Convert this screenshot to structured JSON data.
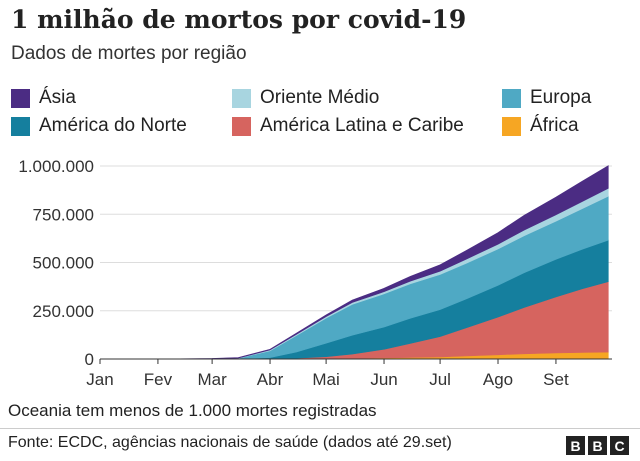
{
  "header": {
    "title": "1 milhão de mortos por covid-19",
    "subtitle": "Dados de mortes por região"
  },
  "legend": [
    {
      "label": "Ásia",
      "color": "#4b2c83"
    },
    {
      "label": "Oriente Médio",
      "color": "#a8d5e0"
    },
    {
      "label": "Europa",
      "color": "#4fa9c4"
    },
    {
      "label": "América do Norte",
      "color": "#157f9e"
    },
    {
      "label": "América Latina e Caribe",
      "color": "#d6645f"
    },
    {
      "label": "África",
      "color": "#f6a623"
    }
  ],
  "chart_data": {
    "type": "area",
    "stacked": true,
    "title": "1 milhão de mortos por covid-19",
    "subtitle": "Dados de mortes por região",
    "x_tick_labels": [
      "Jan",
      "Fev",
      "Mar",
      "Abr",
      "Mai",
      "Jun",
      "Jul",
      "Ago",
      "Set"
    ],
    "y_tick_labels": [
      "0",
      "250.000",
      "500.000",
      "750.000",
      "1.000.000"
    ],
    "y_ticks": [
      0,
      250000,
      500000,
      750000,
      1000000
    ],
    "ylim": [
      0,
      1000000
    ],
    "grid": "horizontal",
    "x": [
      "2020-01-01",
      "2020-02-01",
      "2020-03-01",
      "2020-03-15",
      "2020-04-01",
      "2020-04-15",
      "2020-05-01",
      "2020-05-15",
      "2020-06-01",
      "2020-06-15",
      "2020-07-01",
      "2020-07-15",
      "2020-08-01",
      "2020-08-15",
      "2020-09-01",
      "2020-09-15",
      "2020-09-29"
    ],
    "series": [
      {
        "name": "África",
        "color": "#f6a623",
        "values": [
          0,
          0,
          0,
          0,
          500,
          1000,
          2000,
          3500,
          5500,
          8000,
          11000,
          16000,
          22000,
          27000,
          31000,
          33500,
          35500
        ]
      },
      {
        "name": "América Latina e Caribe",
        "color": "#d6645f",
        "values": [
          0,
          0,
          0,
          0,
          1000,
          3000,
          10000,
          22000,
          45000,
          73000,
          105000,
          145000,
          195000,
          240000,
          290000,
          330000,
          365000
        ]
      },
      {
        "name": "América do Norte",
        "color": "#157f9e",
        "values": [
          0,
          0,
          0,
          500,
          6000,
          32000,
          70000,
          98000,
          115000,
          130000,
          140000,
          150000,
          165000,
          180000,
          195000,
          205000,
          215000
        ]
      },
      {
        "name": "Europa",
        "color": "#4fa9c4",
        "values": [
          0,
          0,
          100,
          3000,
          35000,
          85000,
          130000,
          160000,
          172000,
          178000,
          182000,
          185000,
          188000,
          192000,
          198000,
          210000,
          228000
        ]
      },
      {
        "name": "Oriente Médio",
        "color": "#a8d5e0",
        "values": [
          0,
          0,
          100,
          1000,
          4000,
          6000,
          7500,
          9000,
          11000,
          14000,
          17000,
          21000,
          25000,
          29000,
          33000,
          37000,
          41000
        ]
      },
      {
        "name": "Ásia",
        "color": "#4b2c83",
        "values": [
          0,
          0,
          3000,
          3300,
          4000,
          6000,
          9000,
          13000,
          18000,
          25000,
          33000,
          45000,
          60000,
          77000,
          92000,
          105000,
          117000
        ]
      }
    ],
    "annotation": "Oceania tem menos de 1.000 mortes registradas"
  },
  "note": "Oceania tem menos de 1.000 mortes registradas",
  "footer": {
    "source": "Fonte: ECDC, agências nacionais de saúde (dados até 29.set)",
    "logo_letters": [
      "B",
      "B",
      "C"
    ]
  }
}
